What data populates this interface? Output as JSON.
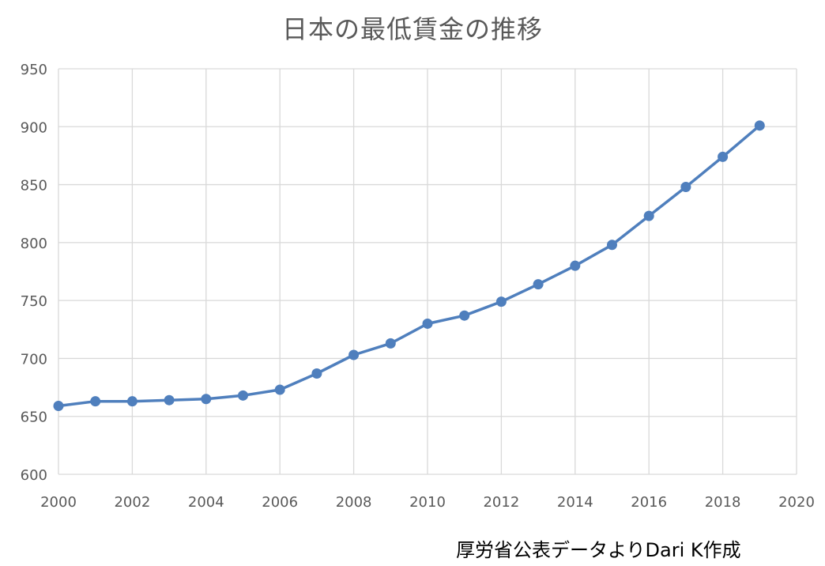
{
  "chart_data": {
    "type": "line",
    "title": "日本の最低賃金の推移",
    "xlabel": "",
    "ylabel": "",
    "xlim": [
      2000,
      2020
    ],
    "ylim": [
      600,
      950
    ],
    "x_ticks": [
      "2000",
      "2002",
      "2004",
      "2006",
      "2008",
      "2010",
      "2012",
      "2014",
      "2016",
      "2018",
      "2020"
    ],
    "y_ticks": [
      "600",
      "650",
      "700",
      "750",
      "800",
      "850",
      "900",
      "950"
    ],
    "grid": true,
    "legend": "none",
    "line_color": "#4f7fbd",
    "grid_color": "#d9d9d9",
    "series": [
      {
        "x": [
          2000,
          2001,
          2002,
          2003,
          2004,
          2005,
          2006,
          2007,
          2008,
          2009,
          2010,
          2011,
          2012,
          2013,
          2014,
          2015,
          2016,
          2017,
          2018,
          2019
        ],
        "values": [
          659,
          663,
          663,
          664,
          665,
          668,
          673,
          687,
          703,
          713,
          730,
          737,
          749,
          764,
          780,
          798,
          823,
          848,
          874,
          901
        ]
      }
    ]
  },
  "source_note": "厚労省公表データよりDari K作成"
}
